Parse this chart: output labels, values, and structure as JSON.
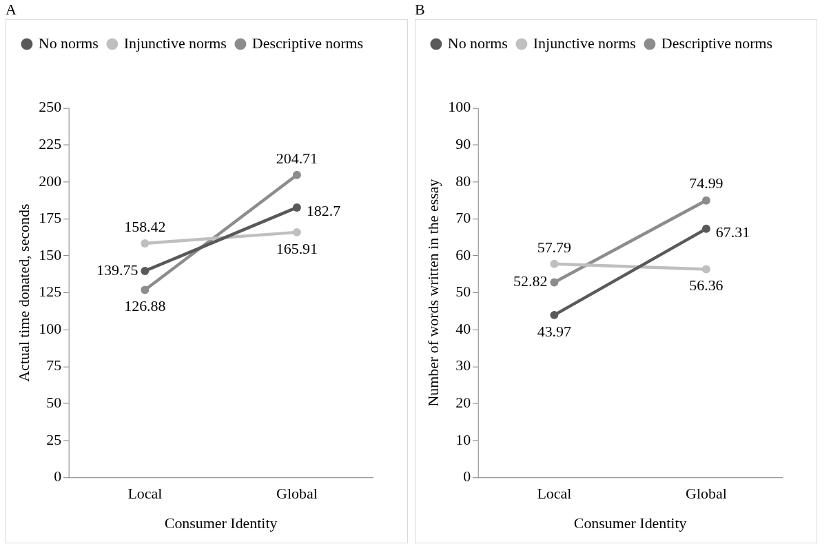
{
  "chart_data": [
    {
      "type": "line",
      "title": "A",
      "xlabel": "Consumer Identity",
      "ylabel": "Actual time donated, seconds",
      "categories": [
        "Local",
        "Global"
      ],
      "series": [
        {
          "name": "No norms",
          "color": "#595959",
          "values": [
            139.75,
            182.7
          ]
        },
        {
          "name": "Injunctive norms",
          "color": "#bfbfbf",
          "values": [
            158.42,
            165.91
          ]
        },
        {
          "name": "Descriptive norms",
          "color": "#8c8c8c",
          "values": [
            126.88,
            204.71
          ]
        }
      ],
      "ylim": [
        0,
        250
      ],
      "yticks": [
        0,
        25,
        50,
        75,
        100,
        125,
        150,
        175,
        200,
        225,
        250
      ],
      "grid": false,
      "legend": "top",
      "marker": "circle",
      "data_labels": true
    },
    {
      "type": "line",
      "title": "B",
      "xlabel": "Consumer Identity",
      "ylabel": "Number of words written in the essay",
      "categories": [
        "Local",
        "Global"
      ],
      "series": [
        {
          "name": "No norms",
          "color": "#595959",
          "values": [
            43.97,
            67.31
          ]
        },
        {
          "name": "Injunctive norms",
          "color": "#bfbfbf",
          "values": [
            57.79,
            56.36
          ]
        },
        {
          "name": "Descriptive norms",
          "color": "#8c8c8c",
          "values": [
            52.82,
            74.99
          ]
        }
      ],
      "ylim": [
        0,
        100
      ],
      "yticks": [
        0,
        10,
        20,
        30,
        40,
        50,
        60,
        70,
        80,
        90,
        100
      ],
      "grid": false,
      "legend": "top",
      "marker": "circle",
      "data_labels": true
    }
  ]
}
